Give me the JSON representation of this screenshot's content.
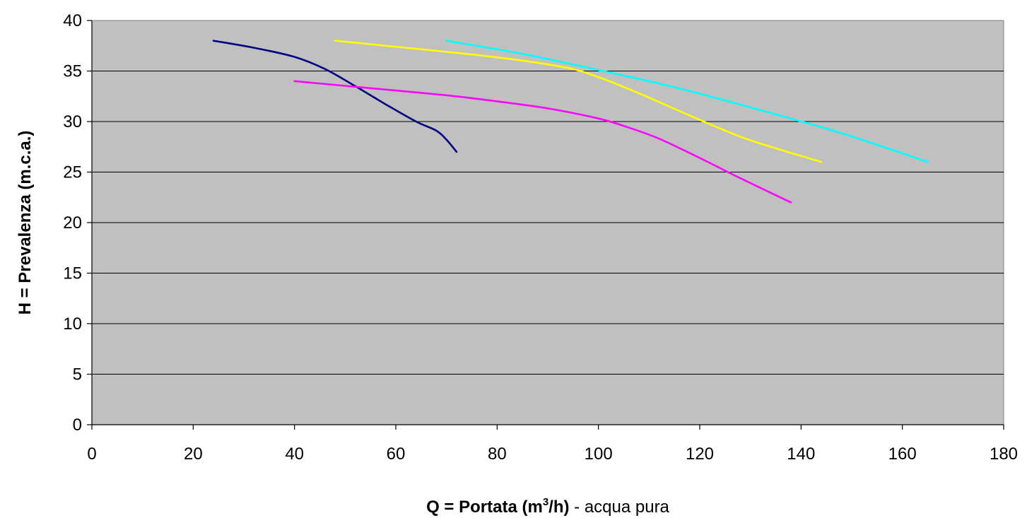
{
  "chart_data": {
    "type": "line",
    "title": "",
    "xlabel": {
      "main": "Q = Portata (m",
      "sup": "3",
      "unit_end": "/h)",
      "suffix": " - acqua pura"
    },
    "ylabel": "H = Prevalenza (m.c.a.)",
    "xlim": [
      0,
      180
    ],
    "ylim": [
      0,
      40
    ],
    "xticks": [
      "0",
      "20",
      "40",
      "60",
      "80",
      "100",
      "120",
      "140",
      "160",
      "180"
    ],
    "yticks": [
      "0",
      "5",
      "10",
      "15",
      "20",
      "25",
      "30",
      "35",
      "40"
    ],
    "grid": "horizontal",
    "legend": "none",
    "plot_background": "#c0c0c0",
    "series": [
      {
        "color": "#000080",
        "x": [
          24,
          32,
          40,
          46,
          52,
          58,
          64,
          68,
          70,
          72
        ],
        "y": [
          38,
          37.3,
          36.4,
          35.2,
          33.5,
          31.7,
          30,
          29.1,
          28.2,
          27
        ]
      },
      {
        "color": "#ff00ff",
        "x": [
          40,
          55,
          70,
          80,
          90,
          100,
          106,
          112,
          120,
          128,
          138
        ],
        "y": [
          34,
          33.3,
          32.6,
          32.0,
          31.3,
          30.3,
          29.4,
          28.3,
          26.4,
          24.4,
          22
        ]
      },
      {
        "color": "#ffff00",
        "x": [
          48,
          60,
          72,
          84,
          94,
          100,
          108,
          118,
          128,
          136,
          144
        ],
        "y": [
          38,
          37.4,
          36.8,
          36.1,
          35.3,
          34.4,
          32.8,
          30.6,
          28.5,
          27.2,
          26
        ]
      },
      {
        "color": "#00ffff",
        "x": [
          70,
          85,
          100,
          115,
          130,
          145,
          155,
          165
        ],
        "y": [
          38,
          36.7,
          35.1,
          33.4,
          31.4,
          29.3,
          27.7,
          26
        ]
      }
    ]
  }
}
